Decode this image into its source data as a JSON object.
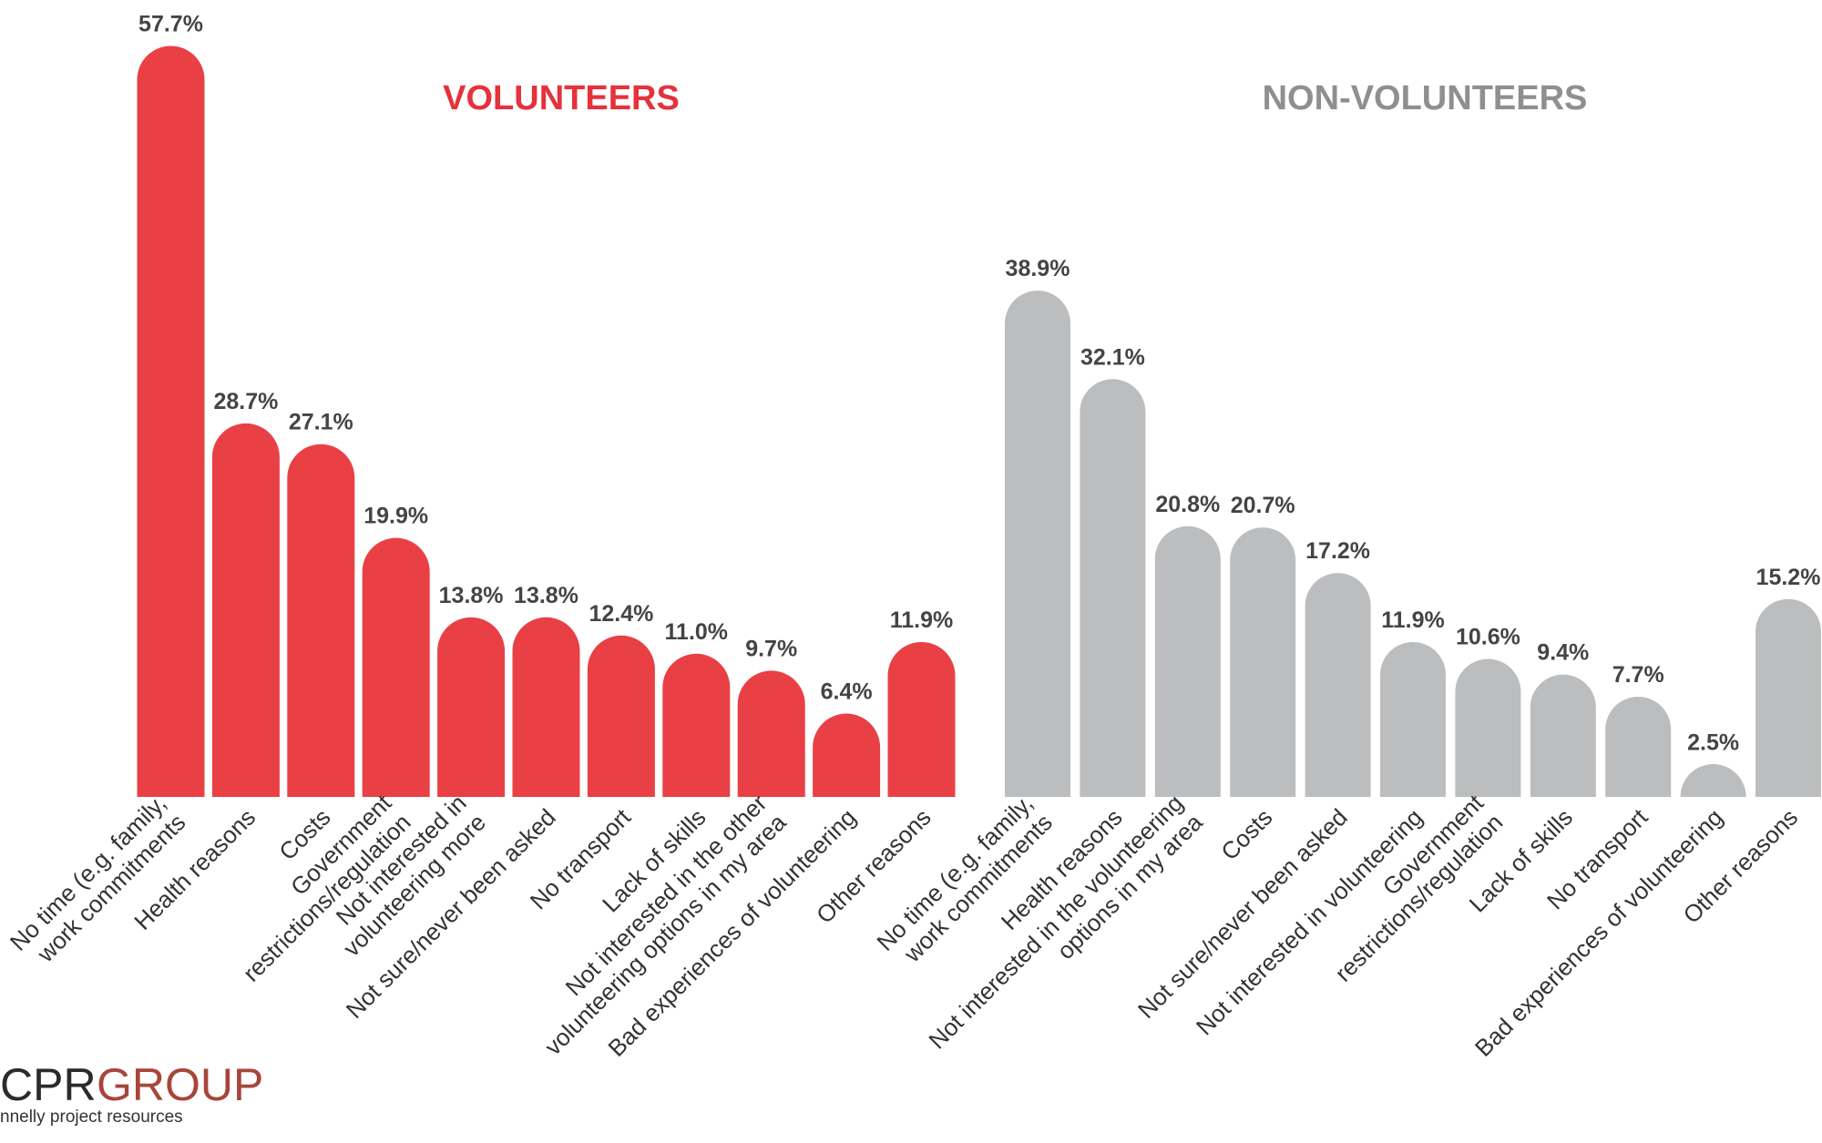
{
  "chart_data": [
    {
      "type": "bar",
      "title": "VOLUNTEERS",
      "color": "#e94045",
      "title_color": "#e5323b",
      "categories": [
        "No time (e.g. family,\nwork commitments",
        "Health reasons",
        "Costs",
        "Government\nrestrictions/regulation",
        "Not interested in\nvolunteering more",
        "Not sure/never been asked",
        "No transport",
        "Lack of skills",
        "Not interested in the other\nvolunteering options in my area",
        "Bad experiences of volunteering",
        "Other reasons"
      ],
      "values": [
        57.7,
        28.7,
        27.1,
        19.9,
        13.8,
        13.8,
        12.4,
        11.0,
        9.7,
        6.4,
        11.9
      ],
      "value_labels": [
        "57.7%",
        "28.7%",
        "27.1%",
        "19.9%",
        "13.8%",
        "13.8%",
        "12.4%",
        "11.0%",
        "9.7%",
        "6.4%",
        "11.9%"
      ]
    },
    {
      "type": "bar",
      "title": "NON-VOLUNTEERS",
      "color": "#bcbdbf",
      "title_color": "#8e8f91",
      "categories": [
        "No time (e.g. family,\nwork commitments",
        "Health reasons",
        "Not interested in the volunteering\noptions in my area",
        "Costs",
        "Not sure/never been asked",
        "Not interested in volunteering",
        "Government\nrestrictions/regulation",
        "Lack of skills",
        "No transport",
        "Bad experiences of volunteering",
        "Other reasons"
      ],
      "values": [
        38.9,
        32.1,
        20.8,
        20.7,
        17.2,
        11.9,
        10.6,
        9.4,
        7.7,
        2.5,
        15.2
      ],
      "value_labels": [
        "38.9%",
        "32.1%",
        "20.8%",
        "20.7%",
        "17.2%",
        "11.9%",
        "10.6%",
        "9.4%",
        "7.7%",
        "2.5%",
        "15.2%"
      ]
    }
  ],
  "logo": {
    "mark": "CPR",
    "word": "GROUP",
    "tagline": "nnelly project resources"
  }
}
